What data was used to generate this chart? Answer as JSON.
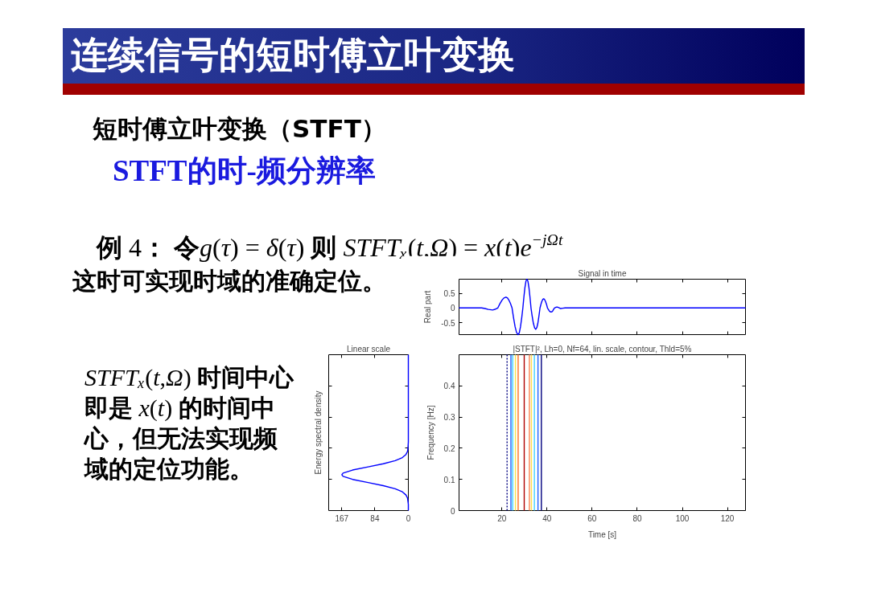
{
  "chart_data": [
    {
      "type": "other",
      "title": "连续信号的短时傅立叶变换",
      "subtitle": "短时傅立叶变换（STFT）",
      "annotations": [
        "STFT的时-频分辨率",
        "例 4： 令g(τ) = δ(τ) 则 STFTₓ(t,Ω) = x(t)e$^{−jΩt}$",
        "这时可实现时域的准确定位。",
        "STFTₓ(t,Ω) 时间中心即是 x(t) 的时间中心，但无法实现频域的定位功能。"
      ]
    },
    {
      "type": "line",
      "title": "Signal in time",
      "ylabel": "Real part",
      "x": [
        1,
        11,
        12.5,
        14,
        15.9,
        17.2,
        18.2,
        19.1,
        20,
        20.9,
        21.8,
        22.5,
        23.15,
        23.8,
        24.5,
        25.2,
        25.85,
        26.5,
        27.2,
        27.7,
        28.25,
        28.8,
        29.3,
        29.75,
        30.2,
        30.65,
        31.1,
        31.55,
        32,
        32.45,
        32.9,
        33.4,
        33.95,
        34.5,
        35,
        35.5,
        35.95,
        36.4,
        36.9,
        37.3,
        37.7,
        38.1,
        38.5,
        38.9,
        39.35,
        39.8,
        40.2,
        40.6,
        41,
        41.4,
        41.8,
        42.2,
        42.55,
        42.9,
        43.3,
        43.9,
        44.5,
        45.2,
        46,
        47,
        48,
        128
      ],
      "series": [
        {
          "color": "#0000ff",
          "values": [
            0,
            0,
            -0.02,
            -0.05,
            -0.07,
            -0.04,
            0,
            0.14,
            0.26,
            0.34,
            0.37,
            0.34,
            0.26,
            0.15,
            0,
            -0.35,
            -0.64,
            -0.84,
            -0.91,
            -0.85,
            -0.64,
            -0.33,
            0,
            0.37,
            0.69,
            0.91,
            0.98,
            0.91,
            0.69,
            0.37,
            0,
            -0.27,
            -0.52,
            -0.68,
            -0.73,
            -0.67,
            -0.52,
            -0.29,
            0,
            0.12,
            0.22,
            0.29,
            0.31,
            0.29,
            0.22,
            0.12,
            0,
            -0.05,
            -0.1,
            -0.13,
            -0.14,
            -0.13,
            -0.1,
            -0.05,
            0,
            0.02,
            0.03,
            0.01,
            -0.02,
            -0.01,
            0,
            0
          ]
        }
      ],
      "xlim": [
        1,
        128
      ],
      "ylim": [
        -0.91,
        0.98
      ],
      "xticks": [
        20,
        40,
        60,
        80,
        100,
        120
      ],
      "yticks": [
        -0.5,
        0,
        0.5
      ],
      "tick_labels": "y"
    },
    {
      "type": "line",
      "orientation": "horizontal",
      "title": "Linear scale",
      "ylabel": "Energy spectral density",
      "x": [
        0,
        0.02,
        0.03,
        0.04,
        0.05,
        0.06,
        0.07,
        0.08,
        0.09,
        0.1,
        0.11,
        0.115,
        0.12,
        0.13,
        0.14,
        0.15,
        0.16,
        0.17,
        0.18,
        0.19,
        0.2,
        0.22,
        0.5
      ],
      "series": [
        {
          "color": "#0000ff",
          "values": [
            0,
            0,
            1,
            2,
            6,
            15,
            33,
            63,
            101,
            140,
            164,
            167,
            164,
            140,
            101,
            63,
            33,
            15,
            6,
            2,
            1,
            0,
            0
          ]
        }
      ],
      "xlim": [
        200,
        0
      ],
      "xticks": [
        167,
        84,
        0
      ],
      "ylim": [
        0,
        0.5
      ],
      "yticks": [
        0.1,
        0.2,
        0.3,
        0.4
      ],
      "tick_labels": "x"
    },
    {
      "type": "line",
      "title": "|STFT|², Lh=0, Nf=64, lin. scale, contour, Thld=5%",
      "xlabel": "Time [s]",
      "ylabel": "Frequency [Hz]",
      "xlim": [
        1,
        128
      ],
      "ylim": [
        0,
        0.5
      ],
      "xticks": [
        20,
        40,
        60,
        80,
        100,
        120
      ],
      "yticks": [
        0,
        0.1,
        0.2,
        0.3,
        0.4
      ],
      "series": [
        {
          "color": "#000080",
          "x": [
            22.3,
            22.3
          ],
          "values": [
            0,
            0.5
          ],
          "line_style": "dotted"
        },
        {
          "color": "#2060ff",
          "x": [
            24,
            24
          ],
          "values": [
            0,
            0.5
          ]
        },
        {
          "color": "#40d0ff",
          "x": [
            24.8,
            24.8
          ],
          "values": [
            0,
            0.5
          ]
        },
        {
          "color": "#f8e050",
          "x": [
            26,
            26
          ],
          "values": [
            0,
            0.5
          ]
        },
        {
          "color": "#ff7020",
          "x": [
            27.2,
            27.2
          ],
          "values": [
            0,
            0.5
          ]
        },
        {
          "color": "#b00000",
          "x": [
            29.9,
            29.9
          ],
          "values": [
            0,
            0.5
          ]
        },
        {
          "color": "#ff8050",
          "x": [
            32.2,
            32.2
          ],
          "values": [
            0,
            0.5
          ]
        },
        {
          "color": "#f8e050",
          "x": [
            33.1,
            33.1
          ],
          "values": [
            0,
            0.5
          ]
        },
        {
          "color": "#40d0ff",
          "x": [
            34.4,
            34.4
          ],
          "values": [
            0,
            0.5
          ]
        },
        {
          "color": "#2060ff",
          "x": [
            36,
            36
          ],
          "values": [
            0,
            0.5
          ]
        },
        {
          "color": "#000080",
          "x": [
            37.5,
            37.5
          ],
          "values": [
            0,
            0.5
          ]
        }
      ]
    }
  ]
}
